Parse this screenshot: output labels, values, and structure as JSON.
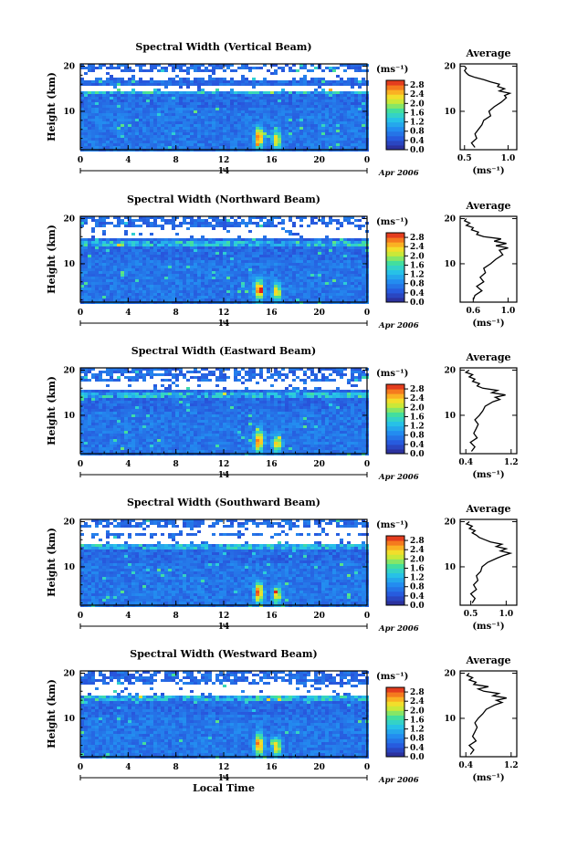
{
  "chart_data": [
    {
      "type": "heatmap",
      "title": "Spectral Width (Vertical Beam)",
      "ylabel": "Height (km)",
      "x_ticks": [
        "0",
        "4",
        "8",
        "12",
        "16",
        "20",
        "0"
      ],
      "xlim": [
        0,
        24
      ],
      "y_ticks": [
        "20",
        "10"
      ],
      "ylim": [
        1.5,
        20.5
      ],
      "date_marker": "14",
      "date_label": "Apr 2006",
      "colorbar": {
        "unit": "(ms⁻¹)",
        "ticks": [
          "2.8",
          "2.4",
          "2.0",
          "1.6",
          "1.2",
          "0.8",
          "0.4",
          "0.0"
        ],
        "range": [
          0,
          3.0
        ]
      },
      "gap_bands": [
        [
          17.5,
          19.0
        ],
        [
          15.0,
          16.0
        ]
      ],
      "profile": {
        "title": "Average",
        "xlabel": "(ms⁻¹)",
        "x_ticks": [
          "0.5",
          "1.0"
        ],
        "x_tick_values": [
          0.5,
          1.0
        ],
        "xlim": [
          0.45,
          1.1
        ],
        "y_ticks": [
          "20",
          "10"
        ],
        "heights": [
          2,
          3,
          4,
          5,
          6,
          7,
          8,
          9,
          10,
          11,
          12,
          13,
          13.5,
          14,
          14.5,
          15,
          15.5,
          16,
          16.5,
          17,
          17.5,
          18,
          18.5,
          19,
          19.5,
          20
        ],
        "values": [
          0.62,
          0.58,
          0.64,
          0.62,
          0.66,
          0.7,
          0.72,
          0.8,
          0.78,
          0.84,
          0.92,
          0.98,
          0.96,
          1.02,
          0.9,
          0.96,
          0.88,
          0.9,
          0.8,
          0.72,
          0.62,
          0.55,
          0.52,
          0.5,
          0.52,
          0.5
        ]
      }
    },
    {
      "type": "heatmap",
      "title": "Spectral Width (Northward Beam)",
      "ylabel": "Height (km)",
      "x_ticks": [
        "0",
        "4",
        "8",
        "12",
        "16",
        "20",
        "0"
      ],
      "xlim": [
        0,
        24
      ],
      "y_ticks": [
        "20",
        "10"
      ],
      "ylim": [
        1.5,
        20.5
      ],
      "date_marker": "14",
      "date_label": "Apr 2006",
      "colorbar": {
        "unit": "(ms⁻¹)",
        "ticks": [
          "2.8",
          "2.4",
          "2.0",
          "1.6",
          "1.2",
          "0.8",
          "0.4",
          "0.0"
        ],
        "range": [
          0,
          3.0
        ]
      },
      "gap_bands": [
        [
          16.0,
          18.5
        ]
      ],
      "profile": {
        "title": "Average",
        "xlabel": "(ms⁻¹)",
        "x_ticks": [
          "0.6",
          "1.0"
        ],
        "x_tick_values": [
          0.6,
          1.0
        ],
        "xlim": [
          0.45,
          1.1
        ],
        "y_ticks": [
          "20",
          "10"
        ],
        "heights": [
          2,
          3,
          4,
          5,
          6,
          7,
          8,
          9,
          10,
          11,
          12,
          13,
          13.5,
          14,
          14.5,
          15,
          15.5,
          16,
          16.5,
          17,
          17.5,
          18,
          18.5,
          19,
          19.5,
          20
        ],
        "values": [
          0.6,
          0.62,
          0.7,
          0.64,
          0.72,
          0.68,
          0.74,
          0.72,
          0.8,
          0.86,
          0.94,
          0.9,
          1.0,
          0.86,
          0.98,
          0.84,
          0.92,
          0.72,
          0.64,
          0.66,
          0.58,
          0.6,
          0.52,
          0.56,
          0.5,
          0.52
        ]
      }
    },
    {
      "type": "heatmap",
      "title": "Spectral Width (Eastward Beam)",
      "ylabel": "Height (km)",
      "x_ticks": [
        "0",
        "4",
        "8",
        "12",
        "16",
        "20",
        "0"
      ],
      "xlim": [
        0,
        24
      ],
      "y_ticks": [
        "20",
        "10"
      ],
      "ylim": [
        1.5,
        20.5
      ],
      "date_marker": "14",
      "date_label": "Apr 2006",
      "colorbar": {
        "unit": "(ms⁻¹)",
        "ticks": [
          "2.8",
          "2.4",
          "2.0",
          "1.6",
          "1.2",
          "0.8",
          "0.4",
          "0.0"
        ],
        "range": [
          0,
          3.0
        ]
      },
      "gap_bands": [
        [
          16.0,
          18.0
        ]
      ],
      "profile": {
        "title": "Average",
        "xlabel": "(ms⁻¹)",
        "x_ticks": [
          "0.4",
          "1.2"
        ],
        "x_tick_values": [
          0.4,
          1.2
        ],
        "xlim": [
          0.3,
          1.3
        ],
        "y_ticks": [
          "20",
          "10"
        ],
        "heights": [
          2,
          3,
          4,
          5,
          6,
          7,
          8,
          9,
          10,
          11,
          12,
          13,
          13.5,
          14,
          14.5,
          15,
          15.5,
          16,
          16.5,
          17,
          17.5,
          18,
          18.5,
          19,
          19.5,
          20
        ],
        "values": [
          0.5,
          0.56,
          0.48,
          0.6,
          0.54,
          0.58,
          0.62,
          0.56,
          0.64,
          0.7,
          0.74,
          0.88,
          1.0,
          0.92,
          1.1,
          0.86,
          0.96,
          0.7,
          0.6,
          0.64,
          0.52,
          0.56,
          0.46,
          0.52,
          0.4,
          0.46
        ]
      }
    },
    {
      "type": "heatmap",
      "title": "Spectral Width (Southward Beam)",
      "ylabel": "Height (km)",
      "x_ticks": [
        "0",
        "4",
        "8",
        "12",
        "16",
        "20",
        "0"
      ],
      "xlim": [
        0,
        24
      ],
      "y_ticks": [
        "20",
        "10"
      ],
      "ylim": [
        1.5,
        20.5
      ],
      "date_marker": "14",
      "date_label": "Apr 2006",
      "colorbar": {
        "unit": "(ms⁻¹)",
        "ticks": [
          "2.8",
          "2.4",
          "2.0",
          "1.6",
          "1.2",
          "0.8",
          "0.4",
          "0.0"
        ],
        "range": [
          0,
          3.0
        ]
      },
      "gap_bands": [
        [
          15.5,
          17.0
        ],
        [
          18.0,
          19.0
        ]
      ],
      "profile": {
        "title": "Average",
        "xlabel": "(ms⁻¹)",
        "x_ticks": [
          "0.5",
          "1.0"
        ],
        "x_tick_values": [
          0.5,
          1.0
        ],
        "xlim": [
          0.35,
          1.15
        ],
        "y_ticks": [
          "20",
          "10"
        ],
        "heights": [
          2,
          3,
          4,
          5,
          6,
          7,
          8,
          9,
          10,
          11,
          12,
          12.5,
          13,
          13.5,
          14,
          14.5,
          15,
          15.5,
          16,
          16.5,
          17,
          17.5,
          18,
          18.5,
          19,
          19.5,
          20
        ],
        "values": [
          0.52,
          0.56,
          0.5,
          0.58,
          0.54,
          0.6,
          0.58,
          0.64,
          0.66,
          0.74,
          0.88,
          0.96,
          1.06,
          0.92,
          1.0,
          0.86,
          0.94,
          0.78,
          0.7,
          0.62,
          0.58,
          0.52,
          0.56,
          0.48,
          0.52,
          0.44,
          0.48
        ]
      }
    },
    {
      "type": "heatmap",
      "title": "Spectral Width (Westward Beam)",
      "ylabel": "Height (km)",
      "xlabel": "Local Time",
      "x_ticks": [
        "0",
        "4",
        "8",
        "12",
        "16",
        "20",
        "0"
      ],
      "xlim": [
        0,
        24
      ],
      "y_ticks": [
        "20",
        "10"
      ],
      "ylim": [
        1.5,
        20.5
      ],
      "date_marker": "14",
      "date_label": "Apr 2006",
      "colorbar": {
        "unit": "(ms⁻¹)",
        "ticks": [
          "2.8",
          "2.4",
          "2.0",
          "1.6",
          "1.2",
          "0.8",
          "0.4",
          "0.0"
        ],
        "range": [
          0,
          3.0
        ]
      },
      "gap_bands": [
        [
          15.5,
          17.5
        ]
      ],
      "profile": {
        "title": "Average",
        "xlabel": "(ms⁻¹)",
        "x_ticks": [
          "0.4",
          "1.2"
        ],
        "x_tick_values": [
          0.4,
          1.2
        ],
        "xlim": [
          0.3,
          1.3
        ],
        "y_ticks": [
          "20",
          "10"
        ],
        "heights": [
          2,
          3,
          4,
          5,
          6,
          7,
          8,
          9,
          10,
          11,
          12,
          13,
          13.5,
          14,
          14.5,
          15,
          15.5,
          16,
          16.5,
          17,
          17.5,
          18,
          18.5,
          19,
          19.5,
          20
        ],
        "values": [
          0.48,
          0.54,
          0.46,
          0.58,
          0.52,
          0.56,
          0.6,
          0.56,
          0.62,
          0.7,
          0.76,
          0.92,
          1.04,
          0.94,
          1.12,
          0.88,
          0.98,
          0.72,
          0.62,
          0.8,
          0.54,
          0.58,
          0.46,
          0.52,
          0.42,
          0.46
        ]
      }
    }
  ]
}
